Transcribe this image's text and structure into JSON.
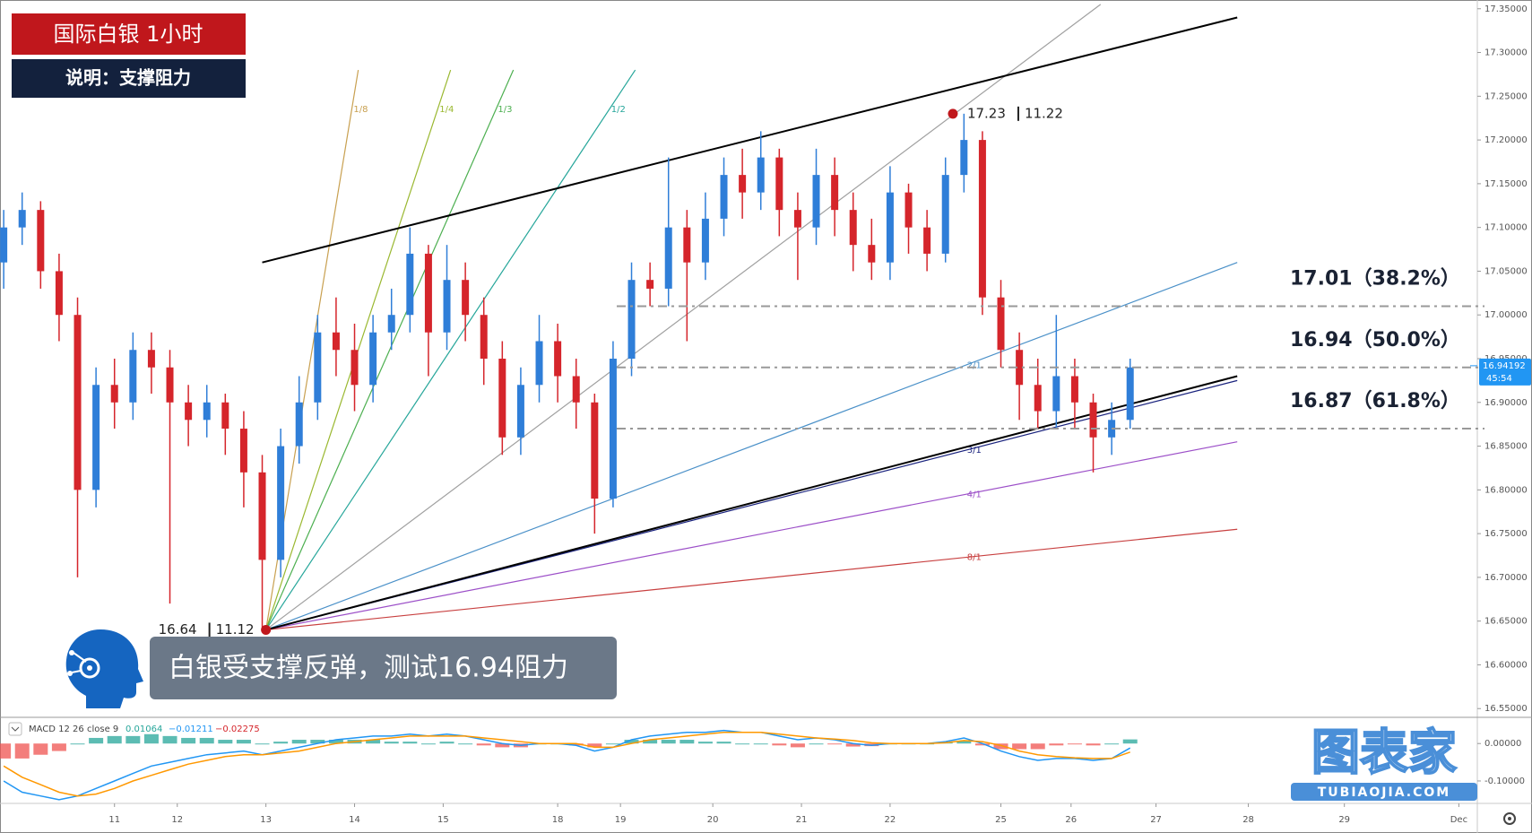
{
  "chart_data": {
    "type": "candlestick",
    "title": "国际白银 1小时",
    "subtitle": "说明：支撑阻力",
    "annotation": "白银受支撑反弹，测试16.94阻力",
    "x": [
      1,
      6,
      11,
      16,
      21,
      26,
      31,
      36,
      41,
      46,
      51,
      56,
      61,
      66,
      71,
      76,
      81,
      86,
      91,
      96,
      101,
      106,
      111,
      116,
      121,
      126,
      131,
      136,
      141,
      146,
      151,
      156,
      161,
      166,
      171,
      176,
      181,
      186,
      191,
      196,
      201,
      206,
      211,
      216,
      221,
      226,
      231,
      236,
      241,
      246,
      251,
      256,
      261,
      266,
      271,
      276,
      281,
      286,
      291,
      296,
      301,
      306
    ],
    "open": [
      17.06,
      17.1,
      17.12,
      17.05,
      17.0,
      16.8,
      16.92,
      16.9,
      16.96,
      16.94,
      16.9,
      16.88,
      16.9,
      16.87,
      16.82,
      16.72,
      16.85,
      16.9,
      16.98,
      16.96,
      16.92,
      16.98,
      17.0,
      17.07,
      16.98,
      17.04,
      17.0,
      16.95,
      16.86,
      16.92,
      16.97,
      16.93,
      16.9,
      16.79,
      16.95,
      17.04,
      17.03,
      17.1,
      17.06,
      17.11,
      17.16,
      17.14,
      17.18,
      17.12,
      17.1,
      17.16,
      17.12,
      17.08,
      17.06,
      17.14,
      17.1,
      17.07,
      17.16,
      17.2,
      17.02,
      16.96,
      16.92,
      16.89,
      16.93,
      16.9,
      16.86,
      16.88
    ],
    "high": [
      17.12,
      17.14,
      17.13,
      17.07,
      17.02,
      16.94,
      16.95,
      16.98,
      16.98,
      16.96,
      16.92,
      16.92,
      16.91,
      16.89,
      16.84,
      16.87,
      16.93,
      17.0,
      17.02,
      16.99,
      17.0,
      17.03,
      17.1,
      17.08,
      17.08,
      17.06,
      17.02,
      16.97,
      16.94,
      17.0,
      16.99,
      16.95,
      16.91,
      16.97,
      17.06,
      17.06,
      17.18,
      17.12,
      17.14,
      17.18,
      17.19,
      17.21,
      17.19,
      17.14,
      17.19,
      17.18,
      17.14,
      17.11,
      17.17,
      17.15,
      17.12,
      17.18,
      17.23,
      17.21,
      17.04,
      16.98,
      16.95,
      17.0,
      16.95,
      16.91,
      16.9,
      16.95
    ],
    "low": [
      17.03,
      17.08,
      17.03,
      16.97,
      16.7,
      16.78,
      16.87,
      16.88,
      16.91,
      16.67,
      16.85,
      16.86,
      16.84,
      16.78,
      16.64,
      16.7,
      16.83,
      16.88,
      16.93,
      16.89,
      16.9,
      16.96,
      16.98,
      16.93,
      16.96,
      16.97,
      16.92,
      16.84,
      16.84,
      16.9,
      16.9,
      16.87,
      16.75,
      16.78,
      16.93,
      17.01,
      17.01,
      16.97,
      17.04,
      17.09,
      17.11,
      17.12,
      17.09,
      17.04,
      17.08,
      17.09,
      17.05,
      17.04,
      17.04,
      17.07,
      17.05,
      17.06,
      17.14,
      17.0,
      16.94,
      16.88,
      16.87,
      16.87,
      16.87,
      16.82,
      16.84,
      16.87
    ],
    "close": [
      17.1,
      17.12,
      17.05,
      17.0,
      16.8,
      16.92,
      16.9,
      16.96,
      16.94,
      16.9,
      16.88,
      16.9,
      16.87,
      16.82,
      16.72,
      16.85,
      16.9,
      16.98,
      16.96,
      16.92,
      16.98,
      17.0,
      17.07,
      16.98,
      17.04,
      17.0,
      16.95,
      16.86,
      16.92,
      16.97,
      16.93,
      16.9,
      16.79,
      16.95,
      17.04,
      17.03,
      17.1,
      17.06,
      17.11,
      17.16,
      17.14,
      17.18,
      17.12,
      17.1,
      17.16,
      17.12,
      17.08,
      17.06,
      17.14,
      17.1,
      17.07,
      17.16,
      17.2,
      17.02,
      16.96,
      16.92,
      16.89,
      16.93,
      16.9,
      16.86,
      16.88,
      16.94
    ],
    "up_color": "#2f7ed8",
    "down_color": "#d5252b",
    "xlim": [
      0,
      400
    ],
    "xticks": [
      {
        "value": 31,
        "label": "11"
      },
      {
        "value": 48,
        "label": "12"
      },
      {
        "value": 72,
        "label": "13"
      },
      {
        "value": 96,
        "label": "14"
      },
      {
        "value": 120,
        "label": "15"
      },
      {
        "value": 151,
        "label": "18"
      },
      {
        "value": 168,
        "label": "19"
      },
      {
        "value": 193,
        "label": "20"
      },
      {
        "value": 217,
        "label": "21"
      },
      {
        "value": 241,
        "label": "22"
      },
      {
        "value": 271,
        "label": "25"
      },
      {
        "value": 290,
        "label": "26"
      },
      {
        "value": 313,
        "label": "27"
      },
      {
        "value": 338,
        "label": "28"
      },
      {
        "value": 364,
        "label": "29"
      },
      {
        "value": 395,
        "label": "Dec"
      }
    ],
    "ylim": [
      16.54,
      17.36
    ],
    "yticks": [
      {
        "value": 17.35,
        "label": "17.35000"
      },
      {
        "value": 17.3,
        "label": "17.30000"
      },
      {
        "value": 17.25,
        "label": "17.25000"
      },
      {
        "value": 17.2,
        "label": "17.20000"
      },
      {
        "value": 17.15,
        "label": "17.15000"
      },
      {
        "value": 17.1,
        "label": "17.10000"
      },
      {
        "value": 17.05,
        "label": "17.05000"
      },
      {
        "value": 17.0,
        "label": "17.00000"
      },
      {
        "value": 16.95,
        "label": "16.95000"
      },
      {
        "value": 16.9,
        "label": "16.90000"
      },
      {
        "value": 16.85,
        "label": "16.85000"
      },
      {
        "value": 16.8,
        "label": "16.80000"
      },
      {
        "value": 16.75,
        "label": "16.75000"
      },
      {
        "value": 16.7,
        "label": "16.70000"
      },
      {
        "value": 16.65,
        "label": "16.65000"
      },
      {
        "value": 16.6,
        "label": "16.60000"
      },
      {
        "value": 16.55,
        "label": "16.55000"
      }
    ],
    "last_price": 16.94192,
    "countdown": "45:54",
    "pivots": [
      {
        "x": 72,
        "price": 16.64,
        "time": "11.12"
      },
      {
        "x": 258,
        "price": 17.23,
        "time": "11.22"
      }
    ],
    "trendlines": [
      {
        "x": [
          71,
          335
        ],
        "y": [
          17.06,
          17.34
        ],
        "color": "#000000"
      },
      {
        "x": [
          72,
          335
        ],
        "y": [
          16.64,
          16.93
        ],
        "color": "#000000"
      }
    ],
    "fan": [
      {
        "label": "1/8",
        "x": [
          72,
          97
        ],
        "y": [
          16.64,
          17.28
        ],
        "color": "#c8a050"
      },
      {
        "label": "1/4",
        "x": [
          72,
          122
        ],
        "y": [
          16.64,
          17.28
        ],
        "color": "#9ab830"
      },
      {
        "label": "1/3",
        "x": [
          72,
          139
        ],
        "y": [
          16.64,
          17.28
        ],
        "color": "#4caf50"
      },
      {
        "label": "1/2",
        "x": [
          72,
          172
        ],
        "y": [
          16.64,
          17.28
        ],
        "color": "#26a69a"
      },
      {
        "x": [
          72,
          298
        ],
        "y": [
          16.64,
          17.355
        ],
        "color": "#a0a0a0"
      },
      {
        "label": "2/1",
        "x": [
          72,
          335
        ],
        "y": [
          16.64,
          17.06
        ],
        "color": "#4a90c8"
      },
      {
        "label": "3/1",
        "x": [
          72,
          335
        ],
        "y": [
          16.64,
          16.925
        ],
        "color": "#1a237e"
      },
      {
        "label": "4/1",
        "x": [
          72,
          335
        ],
        "y": [
          16.64,
          16.855
        ],
        "color": "#9c4fc8"
      },
      {
        "label": "8/1",
        "x": [
          72,
          335
        ],
        "y": [
          16.64,
          16.755
        ],
        "color": "#c84040"
      }
    ],
    "levels": [
      {
        "value": 17.01,
        "label": "17.01（38.2%）"
      },
      {
        "value": 16.94,
        "label": "16.94（50.0%）"
      },
      {
        "value": 16.87,
        "label": "16.87（61.8%）"
      }
    ],
    "macd": {
      "label": "MACD 12 26 close 9",
      "histogram_value": 0.01064,
      "macd_value": {
        "value": -0.01211,
        "label": "−0.01211"
      },
      "signal_value": {
        "value": -0.02275,
        "label": "−0.02275"
      },
      "macd_color": "#2196f3",
      "signal_color": "#ff9800",
      "hist_up_color": "#26a69a",
      "hist_down_color": "#ef5350",
      "ylim": [
        -0.16,
        0.07
      ],
      "yticks": [
        {
          "value": 0,
          "label": "0.00000"
        },
        {
          "value": -0.1,
          "label": "-0.10000"
        }
      ],
      "macd": [
        -0.1,
        -0.13,
        -0.14,
        -0.15,
        -0.14,
        -0.12,
        -0.1,
        -0.08,
        -0.06,
        -0.05,
        -0.04,
        -0.03,
        -0.025,
        -0.02,
        -0.03,
        -0.02,
        -0.01,
        0.0,
        0.01,
        0.015,
        0.02,
        0.02,
        0.025,
        0.02,
        0.025,
        0.02,
        0.01,
        0.0,
        -0.005,
        0.0,
        0.0,
        -0.005,
        -0.02,
        -0.01,
        0.01,
        0.02,
        0.025,
        0.03,
        0.03,
        0.035,
        0.03,
        0.03,
        0.02,
        0.01,
        0.015,
        0.01,
        0.0,
        -0.005,
        0.0,
        0.0,
        0.0,
        0.005,
        0.015,
        0.0,
        -0.02,
        -0.035,
        -0.045,
        -0.04,
        -0.04,
        -0.045,
        -0.04,
        -0.012
      ],
      "signal": [
        -0.06,
        -0.09,
        -0.11,
        -0.13,
        -0.14,
        -0.135,
        -0.12,
        -0.1,
        -0.085,
        -0.07,
        -0.055,
        -0.045,
        -0.035,
        -0.03,
        -0.03,
        -0.025,
        -0.02,
        -0.01,
        0.0,
        0.005,
        0.01,
        0.015,
        0.02,
        0.02,
        0.02,
        0.02,
        0.015,
        0.01,
        0.005,
        0.0,
        0.0,
        0.0,
        -0.01,
        -0.01,
        0.0,
        0.01,
        0.015,
        0.02,
        0.025,
        0.03,
        0.03,
        0.03,
        0.025,
        0.02,
        0.015,
        0.012,
        0.008,
        0.002,
        0.0,
        0.0,
        0.0,
        0.002,
        0.008,
        0.005,
        -0.005,
        -0.02,
        -0.03,
        -0.035,
        -0.038,
        -0.04,
        -0.04,
        -0.023
      ],
      "histogram": [
        -0.04,
        -0.04,
        -0.03,
        -0.02,
        0,
        0.015,
        0.02,
        0.02,
        0.025,
        0.02,
        0.015,
        0.015,
        0.01,
        0.01,
        0,
        0.005,
        0.01,
        0.01,
        0.01,
        0.01,
        0.01,
        0.005,
        0.005,
        0,
        0.005,
        0,
        -0.005,
        -0.01,
        -0.01,
        0,
        0,
        -0.005,
        -0.01,
        0,
        0.01,
        0.01,
        0.01,
        0.01,
        0.005,
        0.005,
        0,
        0,
        -0.005,
        -0.01,
        0,
        -0.002,
        -0.008,
        -0.007,
        0,
        0,
        0,
        0.003,
        0.007,
        -0.005,
        -0.015,
        -0.015,
        -0.015,
        -0.005,
        -0.002,
        -0.005,
        0,
        0.011
      ]
    },
    "watermark": {
      "title": "图表家",
      "url": "TUBIAOJIA.COM"
    }
  }
}
